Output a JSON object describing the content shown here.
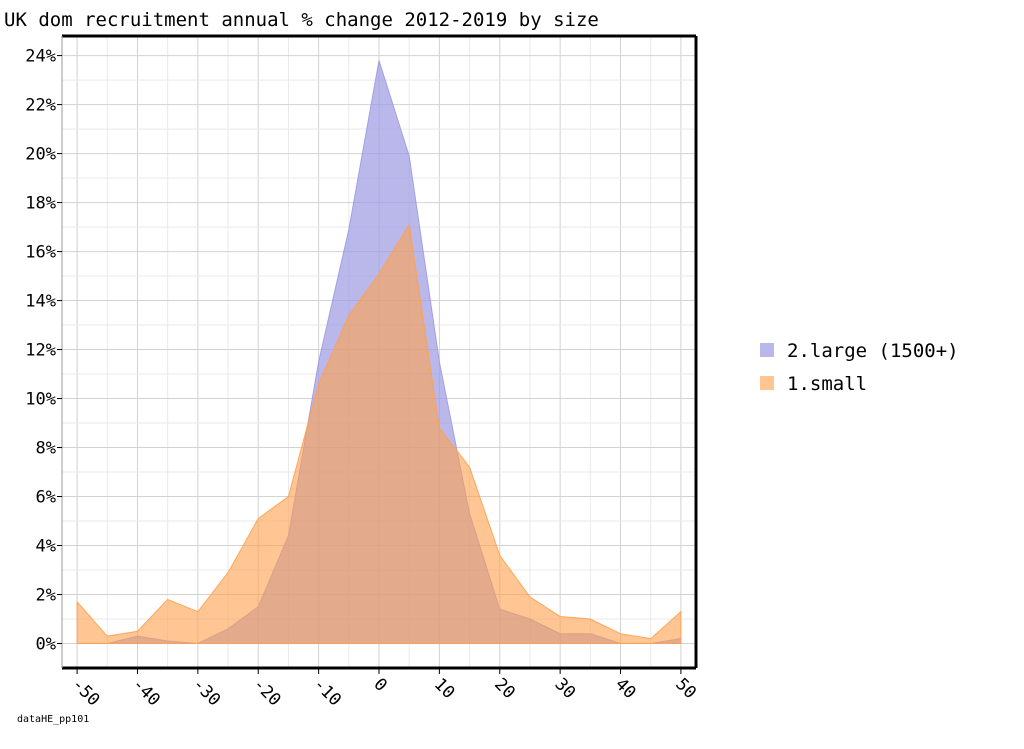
{
  "chart_data": {
    "type": "area",
    "title": "UK dom recruitment annual % change 2012-2019 by size",
    "xlabel": "",
    "ylabel": "",
    "x": [
      -50,
      -45,
      -40,
      -35,
      -30,
      -25,
      -20,
      -15,
      -10,
      -5,
      0,
      5,
      10,
      15,
      20,
      25,
      30,
      35,
      40,
      45,
      50
    ],
    "xlim": [
      -52.5,
      52.5
    ],
    "ylim": [
      -1.0,
      24.8
    ],
    "x_ticks": [
      -50,
      -40,
      -30,
      -20,
      -10,
      0,
      10,
      20,
      30,
      40,
      50
    ],
    "y_ticks": [
      0,
      2,
      4,
      6,
      8,
      10,
      12,
      14,
      16,
      18,
      20,
      22,
      24
    ],
    "y_tick_labels": [
      "0%",
      "2%",
      "4%",
      "6%",
      "8%",
      "10%",
      "12%",
      "14%",
      "16%",
      "18%",
      "20%",
      "22%",
      "24%"
    ],
    "grid": true,
    "legend_position": "right",
    "series": [
      {
        "name": "2.large (1500+)",
        "color": "#9c9ae3",
        "values": [
          0.0,
          0.0,
          0.3,
          0.1,
          0.0,
          0.6,
          1.5,
          4.4,
          11.5,
          16.9,
          23.8,
          19.9,
          11.5,
          5.3,
          1.4,
          1.0,
          0.4,
          0.4,
          0.0,
          0.0,
          0.2
        ]
      },
      {
        "name": "1.small",
        "color": "#ffa04d",
        "values": [
          1.7,
          0.3,
          0.5,
          1.8,
          1.3,
          2.9,
          5.1,
          6.0,
          10.6,
          13.4,
          15.1,
          17.1,
          8.8,
          7.2,
          3.6,
          1.9,
          1.1,
          1.0,
          0.4,
          0.2,
          1.3
        ]
      }
    ]
  },
  "caption": "dataHE_pp101"
}
